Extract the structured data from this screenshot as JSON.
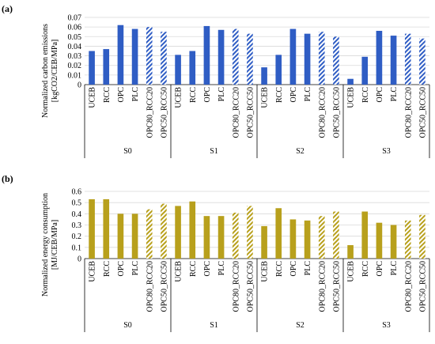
{
  "panels": [
    {
      "label": "(a)"
    },
    {
      "label": "(b)"
    }
  ],
  "colors": {
    "blue": "#2F5DC4",
    "gold": "#B8A01C",
    "axis": "#000000",
    "gridline": "#D9D9D9"
  },
  "chart_data": [
    {
      "type": "bar",
      "ylabel": "Normalized carbon emissions [kgCO2/CEB/MPa]",
      "ylim": [
        0,
        0.07
      ],
      "yticks": [
        "0",
        "0.01",
        "0.02",
        "0.03",
        "0.04",
        "0.05",
        "0.06",
        "0.07"
      ],
      "grid": true,
      "color": "#2F5DC4",
      "groups": [
        "S0",
        "S1",
        "S2",
        "S3"
      ],
      "categories": [
        "UCEB",
        "RCC",
        "OPC",
        "PLC",
        "OPC80_RCC20",
        "OPC50_RCC50"
      ],
      "hatched_categories": [
        "OPC80_RCC20",
        "OPC50_RCC50"
      ],
      "series": [
        {
          "group": "S0",
          "values": [
            0.035,
            0.037,
            0.062,
            0.058,
            0.06,
            0.055
          ]
        },
        {
          "group": "S1",
          "values": [
            0.031,
            0.035,
            0.061,
            0.057,
            0.058,
            0.053
          ]
        },
        {
          "group": "S2",
          "values": [
            0.018,
            0.031,
            0.058,
            0.053,
            0.055,
            0.05
          ]
        },
        {
          "group": "S3",
          "values": [
            0.006,
            0.029,
            0.056,
            0.051,
            0.053,
            0.048
          ]
        }
      ]
    },
    {
      "type": "bar",
      "ylabel": "Normalized energy consumption [MJ/CEB/MPa]",
      "ylim": [
        0,
        0.6
      ],
      "yticks": [
        "0",
        "0.1",
        "0.2",
        "0.3",
        "0.4",
        "0.5",
        "0.6"
      ],
      "grid": true,
      "color": "#B8A01C",
      "groups": [
        "S0",
        "S1",
        "S2",
        "S3"
      ],
      "categories": [
        "UCEB",
        "RCC",
        "OPC",
        "PLC",
        "OPC80_RCC20",
        "OPC50_RCC50"
      ],
      "hatched_categories": [
        "OPC80_RCC20",
        "OPC50_RCC50"
      ],
      "series": [
        {
          "group": "S0",
          "values": [
            0.53,
            0.53,
            0.4,
            0.4,
            0.44,
            0.49
          ]
        },
        {
          "group": "S1",
          "values": [
            0.47,
            0.51,
            0.38,
            0.38,
            0.41,
            0.47
          ]
        },
        {
          "group": "S2",
          "values": [
            0.29,
            0.45,
            0.35,
            0.34,
            0.38,
            0.42
          ]
        },
        {
          "group": "S3",
          "values": [
            0.12,
            0.42,
            0.32,
            0.3,
            0.34,
            0.39
          ]
        }
      ]
    }
  ]
}
